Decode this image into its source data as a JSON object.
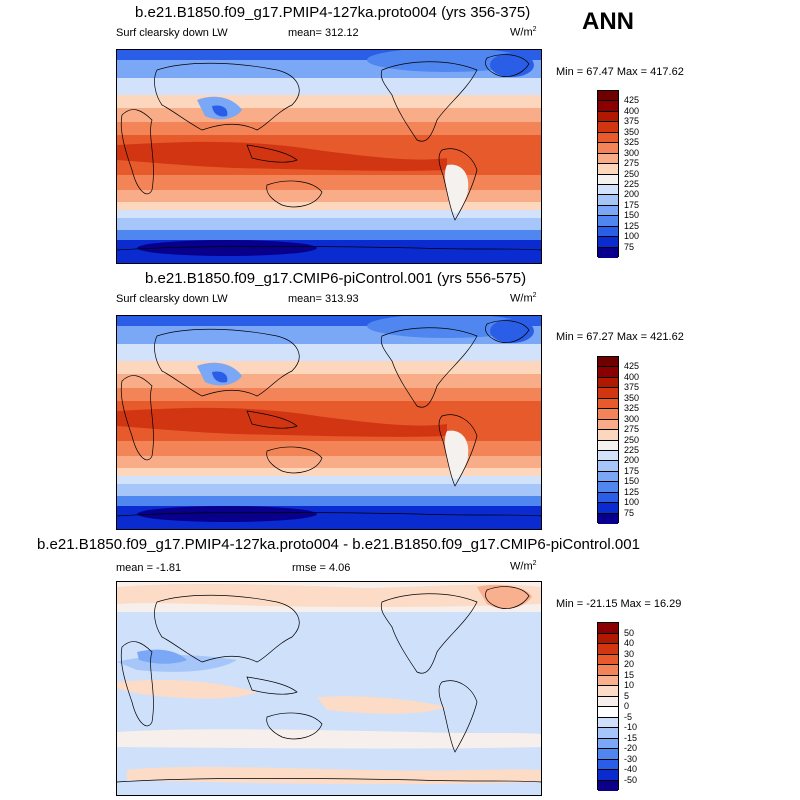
{
  "season": "ANN",
  "units_base": "W/m",
  "units_exp": "2",
  "colors_abs": [
    "#08008c",
    "#0a2bd0",
    "#2a5ee6",
    "#4f86f0",
    "#7aa8f6",
    "#a6c6fa",
    "#d2e2fb",
    "#f4f1ef",
    "#fcd6bd",
    "#f8ad88",
    "#f28457",
    "#e65a2c",
    "#d23512",
    "#b01800",
    "#8a0000"
  ],
  "colors_diff": [
    "#0c008a",
    "#0a2bd0",
    "#2a5ee6",
    "#4f86f0",
    "#7aa8f6",
    "#a6c6fa",
    "#cfe0fb",
    "#ffffff",
    "#f6efec",
    "#fcdcc6",
    "#f8b08e",
    "#f28457",
    "#e65a2c",
    "#d23512",
    "#b01800",
    "#8a0000"
  ],
  "panels": [
    {
      "title": "b.e21.B1850.f09_g17.PMIP4-127ka.proto004 (yrs 356-375)",
      "variable": "Surf clearsky down LW",
      "mean": "mean= 312.12",
      "minmax": "Min =  67.47 Max = 417.62",
      "levels": [
        "425",
        "400",
        "375",
        "350",
        "325",
        "300",
        "275",
        "250",
        "225",
        "200",
        "175",
        "150",
        "125",
        "100",
        "75"
      ]
    },
    {
      "title": "b.e21.B1850.f09_g17.CMIP6-piControl.001 (yrs 556-575)",
      "variable": "Surf clearsky down LW",
      "mean": "mean= 313.93",
      "minmax": "Min =  67.27 Max = 421.62",
      "levels": [
        "425",
        "400",
        "375",
        "350",
        "325",
        "300",
        "275",
        "250",
        "225",
        "200",
        "175",
        "150",
        "125",
        "100",
        "75"
      ]
    },
    {
      "title": "b.e21.B1850.f09_g17.PMIP4-127ka.proto004 - b.e21.B1850.f09_g17.CMIP6-piControl.001",
      "mean": "mean =  -1.81",
      "rmse": "rmse =  4.06",
      "minmax": "Min = -21.15 Max =  16.29",
      "levels": [
        "50",
        "40",
        "30",
        "20",
        "15",
        "10",
        "5",
        "0",
        "-5",
        "-10",
        "-15",
        "-20",
        "-30",
        "-40",
        "-50"
      ]
    }
  ]
}
